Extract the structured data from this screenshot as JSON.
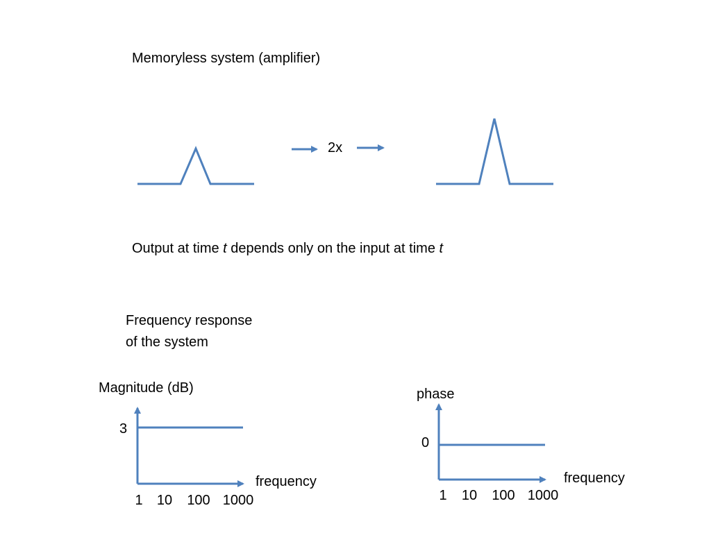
{
  "title": "Memoryless system (amplifier)",
  "amplifier": {
    "label": "2x"
  },
  "statement": {
    "parts": [
      "Output at time ",
      "t",
      " depends only on the input at time ",
      "t"
    ]
  },
  "frequency_response": {
    "heading": [
      "Frequency response",
      "of the system"
    ],
    "magnitude": {
      "axis_label": "Magnitude (dB)",
      "level_label": "3",
      "x_label": "frequency",
      "x_ticks": [
        "1",
        "10",
        "100",
        "1000"
      ]
    },
    "phase": {
      "axis_label": "phase",
      "level_label": "0",
      "x_label": "frequency",
      "x_ticks": [
        "1",
        "10",
        "100",
        "1000"
      ]
    }
  }
}
